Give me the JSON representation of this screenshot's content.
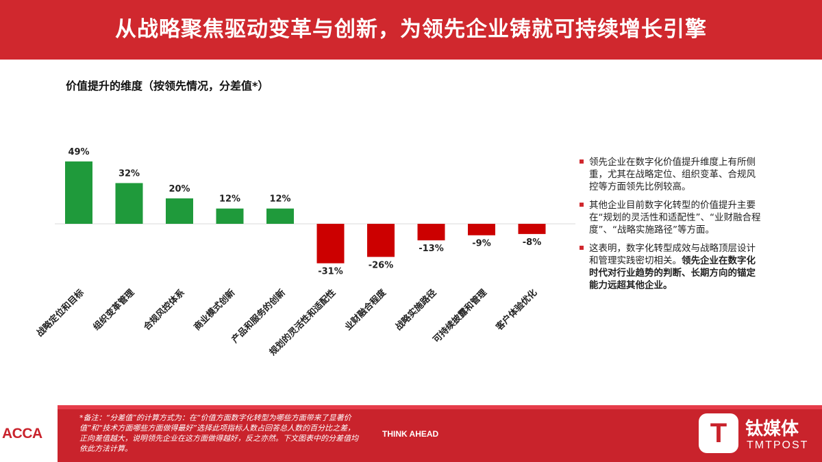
{
  "header": {
    "title": "从战略聚焦驱动变革与创新，为领先企业铸就可持续增长引擎"
  },
  "subtitle": "价值提升的维度（按领先情况，分差值*）",
  "chart_data": {
    "type": "bar",
    "categories": [
      "战略定位和目标",
      "组织变革管理",
      "合规风控体系",
      "商业模式创新",
      "产品和服务的创新",
      "规划的灵活性和适配性",
      "业财融合程度",
      "战略实施路径",
      "可持续披露和管理",
      "客户体验优化"
    ],
    "values": [
      49,
      32,
      20,
      12,
      12,
      -31,
      -26,
      -13,
      -9,
      -8
    ],
    "value_labels": [
      "49%",
      "32%",
      "20%",
      "12%",
      "12%",
      "-31%",
      "-26%",
      "-13%",
      "-9%",
      "-8%"
    ],
    "positive_color": "#1f9a3b",
    "negative_color": "#cc0000",
    "grid": false,
    "legend": "none"
  },
  "notes": [
    {
      "text": "领先企业在数字化价值提升维度上有所侧重，尤其在战略定位、组织变革、合规风控等方面领先比例较高。",
      "bold": ""
    },
    {
      "text": "其他企业目前数字化转型的价值提升主要在“规划的灵活性和适配性”、“业财融合程度”、“战略实施路径”等方面。",
      "bold": ""
    },
    {
      "text": "这表明，数字化转型成效与战略顶层设计和管理实践密切相关。",
      "bold": "领先企业在数字化时代对行业趋势的判断、长期方向的锚定能力远超其他企业。"
    }
  ],
  "footer": {
    "logo": "ACCA",
    "footnote": "*备注：“分差值”的计算方式为：在“价值方面数字化转型为哪些方面带来了显著价值”和“技术方面哪些方面做得最好”选择此项指标人数占回答总人数的百分比之差，正向差值越大，说明领先企业在这方面做得越好，反之亦然。下文图表中的分差值均依此方法计算。",
    "tagline": "THINK AHEAD",
    "brand_cn": "钛媒体",
    "brand_en": "TMTPOST",
    "brand_mark": "T"
  }
}
